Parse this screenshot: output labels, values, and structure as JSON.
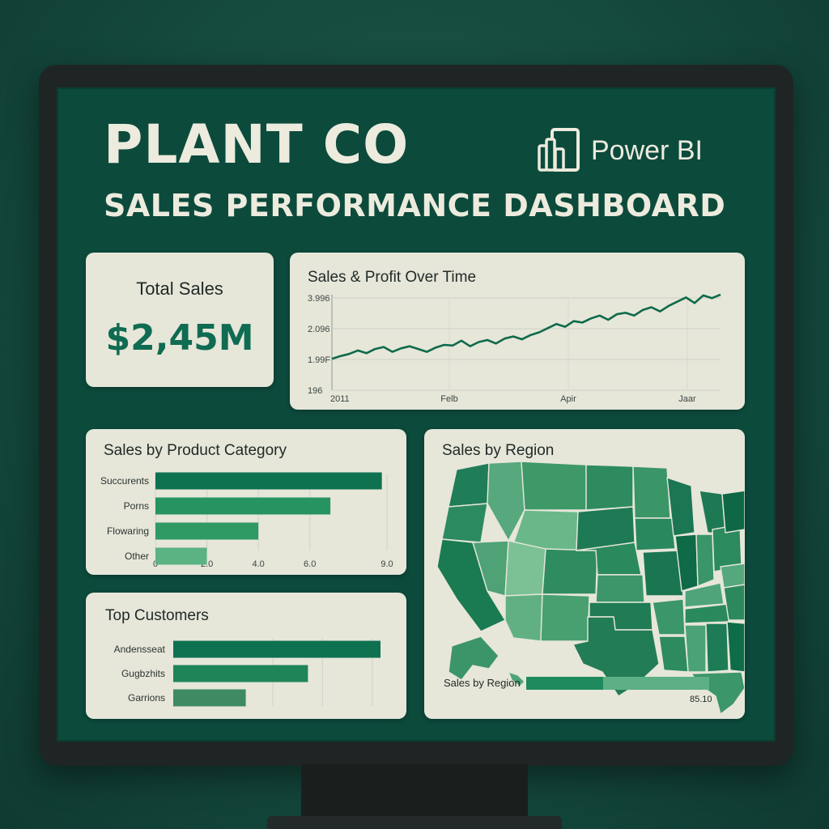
{
  "header": {
    "title": "PLANT CO",
    "subtitle": "SALES PERFORMANCE DASHBOARD",
    "brand": "Power BI"
  },
  "kpi": {
    "label": "Total Sales",
    "value": "$2,45M"
  },
  "colors": {
    "accent": "#0f6b51",
    "screen_bg": "#0c4a3c",
    "card_bg": "#e6e6d9",
    "bar_dark": "#0e7150",
    "bar_mid": "#27945f",
    "bar_light": "#52ab7a"
  },
  "chart_data": [
    {
      "id": "line",
      "type": "line",
      "title": "Sales & Profit Over Time",
      "y_ticks": [
        "3.996",
        "2.096",
        "1.99F",
        "196"
      ],
      "x_ticks": [
        "2011",
        "Felb",
        "Apir",
        "Jaar"
      ],
      "series": [
        {
          "values": [
            0.08,
            0.12,
            0.15,
            0.2,
            0.16,
            0.22,
            0.25,
            0.18,
            0.23,
            0.26,
            0.22,
            0.18,
            0.24,
            0.28,
            0.27,
            0.34,
            0.26,
            0.32,
            0.35,
            0.3,
            0.37,
            0.4,
            0.36,
            0.42,
            0.46,
            0.52,
            0.58,
            0.54,
            0.62,
            0.6,
            0.66,
            0.7,
            0.64,
            0.72,
            0.74,
            0.7,
            0.78,
            0.82,
            0.76,
            0.84,
            0.9,
            0.96,
            0.88,
            0.99,
            0.95,
            1.0
          ]
        }
      ]
    },
    {
      "id": "category",
      "type": "bar",
      "title": "Sales by Product Category",
      "categories": [
        "Succurents",
        "Porns",
        "Flowaring",
        "Other"
      ],
      "values": [
        8.8,
        6.8,
        4.0,
        2.0
      ],
      "x_ticks": [
        "0",
        "2.0",
        "4.0",
        "6.0",
        "9.0"
      ],
      "xlim": [
        0,
        9
      ]
    },
    {
      "id": "customers",
      "type": "bar",
      "title": "Top Customers",
      "categories": [
        "Andensseat",
        "Gugbzhits",
        "Garrions"
      ],
      "values": [
        1.0,
        0.65,
        0.35
      ]
    }
  ],
  "region": {
    "title": "Sales by Region",
    "bar_label": "Sales by Region",
    "bar_value": "85.10",
    "bar_fill": 0.42
  }
}
